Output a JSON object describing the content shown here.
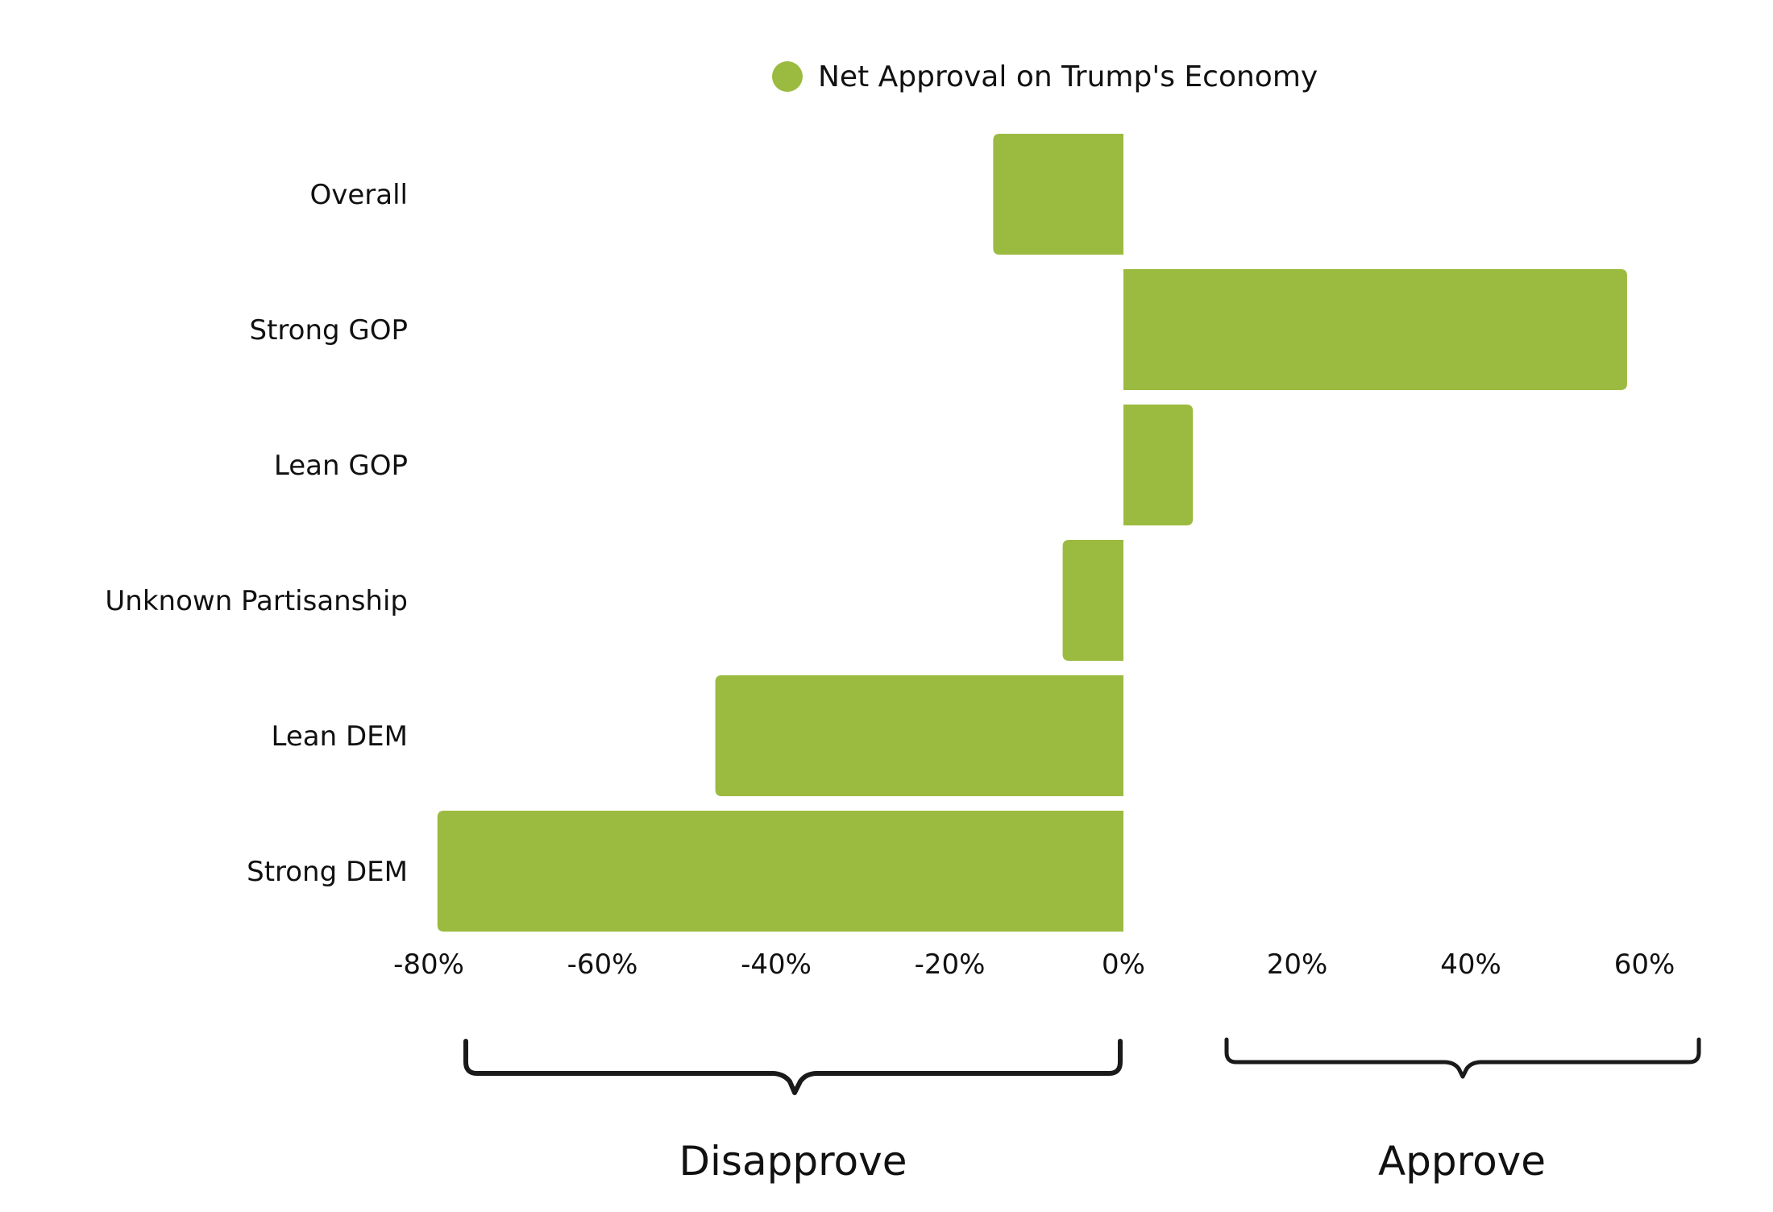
{
  "chart_data": {
    "type": "bar",
    "orientation": "horizontal",
    "legend": {
      "position": "top-center",
      "label": "Net Approval on Trump's Economy",
      "color": "#9BBB40"
    },
    "categories": [
      "Overall",
      "Strong GOP",
      "Lean GOP",
      "Unknown Partisanship",
      "Lean DEM",
      "Strong DEM"
    ],
    "series": [
      {
        "name": "Net Approval on Trump's Economy",
        "color": "#9BBB40",
        "values": [
          -15,
          58,
          8,
          -7,
          -47,
          -79
        ]
      }
    ],
    "xlim": [
      -80,
      60
    ],
    "xticks": [
      -80,
      -60,
      -40,
      -20,
      0,
      20,
      40,
      60
    ],
    "xtick_labels": [
      "-80%",
      "-60%",
      "-40%",
      "-20%",
      "0%",
      "20%",
      "40%",
      "60%"
    ],
    "grid": false,
    "annotations": [
      {
        "label": "Disapprove",
        "side": "negative"
      },
      {
        "label": "Approve",
        "side": "positive"
      }
    ]
  }
}
